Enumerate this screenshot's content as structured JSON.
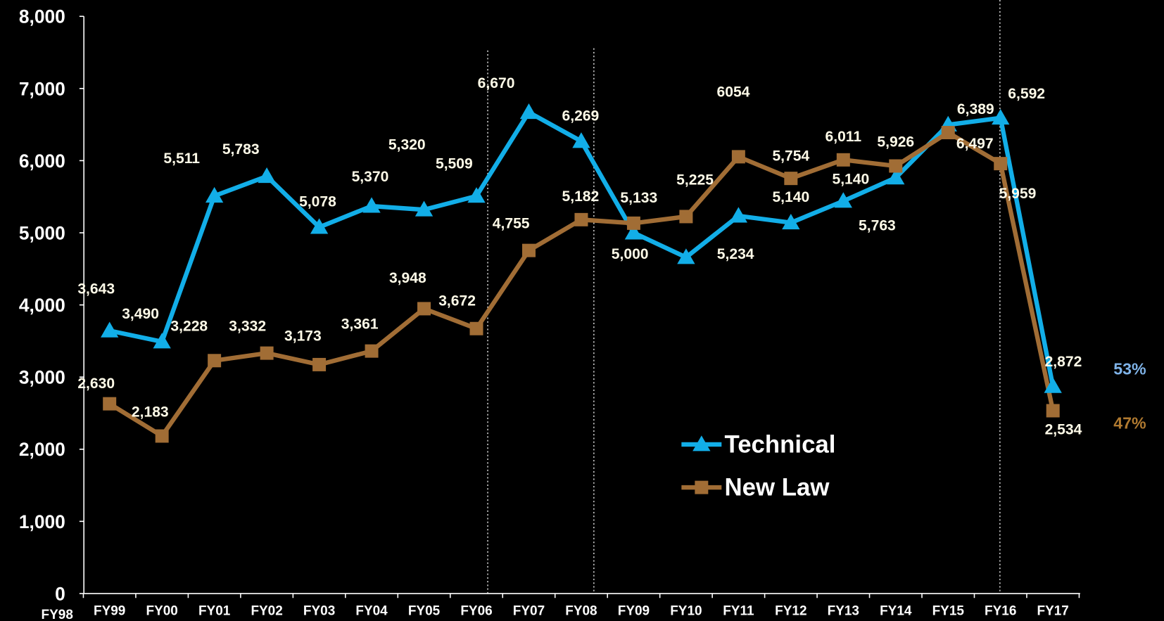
{
  "chart_data": {
    "type": "line",
    "categories": [
      "FY98",
      "FY99",
      "FY00",
      "FY01",
      "FY02",
      "FY03",
      "FY04",
      "FY05",
      "FY06",
      "FY07",
      "FY08",
      "FY09",
      "FY10",
      "FY11",
      "FY12",
      "FY13",
      "FY14",
      "FY15",
      "FY16",
      "FY17"
    ],
    "series": [
      {
        "name": "Technical",
        "color": "#12aee8",
        "marker": "triangle",
        "values": [
          null,
          3643,
          3490,
          5511,
          5783,
          5078,
          5370,
          5320,
          5509,
          6670,
          6269,
          5000,
          4660,
          5234,
          5140,
          5440,
          5763,
          6497,
          6592,
          2872
        ],
        "value_labels": [
          null,
          "3,643",
          "3,490",
          "5,511",
          "5,783",
          "5,078",
          "5,370",
          "5,320",
          "5,509",
          "6,670",
          "6,269",
          "5,000",
          null,
          "5,234",
          "5,140",
          null,
          "5,763",
          "6,497",
          "6,592",
          "2,872"
        ]
      },
      {
        "name": "New Law",
        "color": "#a16d35",
        "marker": "square",
        "values": [
          null,
          2630,
          2183,
          3228,
          3332,
          3173,
          3361,
          3948,
          3672,
          4755,
          5182,
          5133,
          5225,
          6054,
          5754,
          6011,
          5926,
          6389,
          5959,
          2534
        ],
        "value_labels": [
          null,
          "2,630",
          "2,183",
          "3,228",
          "3,332",
          "3,173",
          "3,361",
          "3,948",
          "3,672",
          "4,755",
          "5,182",
          "5,133",
          "5,225",
          "6054",
          "5,754",
          "6,011",
          "5,926",
          "6,389",
          "5,959",
          "2,534"
        ]
      }
    ],
    "annotations": [
      {
        "text": "5,140"
      },
      {
        "text": "53%",
        "color": "#7fb3e8"
      },
      {
        "text": "47%",
        "color": "#b07a30"
      }
    ],
    "ylim": [
      0,
      8000
    ],
    "yticks": [
      0,
      {
        "value": 1000,
        "label": "1,000"
      },
      {
        "value": 2000,
        "label": "2,000"
      },
      {
        "value": 3000,
        "label": "3,000"
      },
      {
        "value": 4000,
        "label": "4,000"
      },
      {
        "value": 5000,
        "label": "5,000"
      },
      {
        "value": 6000,
        "label": "6,000"
      },
      {
        "value": 7000,
        "label": "7,000"
      },
      {
        "value": 8000,
        "label": "8,000"
      }
    ],
    "legend": "center"
  }
}
